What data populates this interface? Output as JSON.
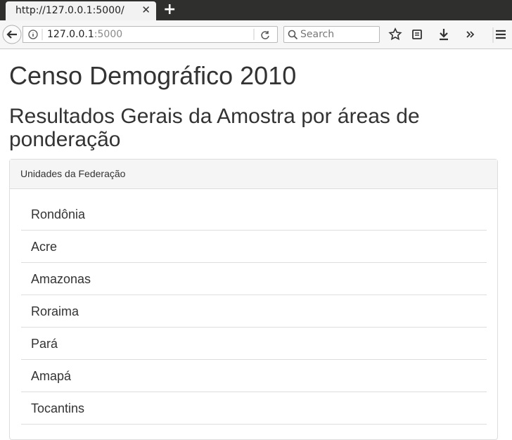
{
  "browser": {
    "tab_title": "http://127.0.0.1:5000/",
    "url_host": "127.0.0.1",
    "url_port": ":5000",
    "search_placeholder": "Search"
  },
  "page": {
    "title": "Censo Demográfico 2010",
    "subtitle": "Resultados Gerais da Amostra por áreas de ponderação",
    "panel": {
      "heading": "Unidades da Federação",
      "items": [
        "Rondônia",
        "Acre",
        "Amazonas",
        "Roraima",
        "Pará",
        "Amapá",
        "Tocantins"
      ]
    }
  }
}
